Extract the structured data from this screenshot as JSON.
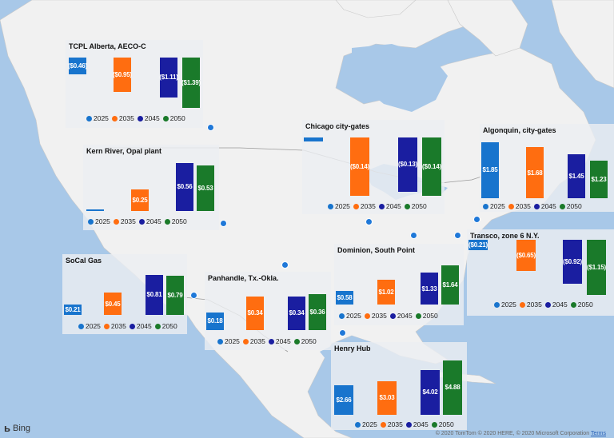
{
  "colors": {
    "2025": "#1874cd",
    "2035": "#ff6d10",
    "2045": "#1a1ea0",
    "2050": "#1a7a2a",
    "water": "#a8c8e8",
    "land": "#f1f1f1"
  },
  "years": [
    "2025",
    "2035",
    "2045",
    "2050"
  ],
  "panels": [
    {
      "title": "TCPL Alberta, AECO-C",
      "labels": [
        "($0.46)",
        "($0.95)",
        "($1.11)",
        "($1.39)"
      ],
      "values": [
        -0.46,
        -0.95,
        -1.11,
        -1.39
      ]
    },
    {
      "title": "Chicago city-gates",
      "labels": [
        "",
        "($0.14)",
        "($0.13)",
        "($0.14)"
      ],
      "values": [
        -0.01,
        -0.14,
        -0.13,
        -0.14
      ]
    },
    {
      "title": "Algonquin, city-gates",
      "labels": [
        "$1.85",
        "$1.68",
        "$1.45",
        "$1.23"
      ],
      "values": [
        1.85,
        1.68,
        1.45,
        1.23
      ]
    },
    {
      "title": "Kern River, Opal plant",
      "labels": [
        "",
        "$0.25",
        "$0.56",
        "$0.53"
      ],
      "values": [
        0.005,
        0.25,
        0.56,
        0.53
      ]
    },
    {
      "title": "SoCal Gas",
      "labels": [
        "$0.21",
        "$0.45",
        "$0.81",
        "$0.79"
      ],
      "values": [
        0.21,
        0.45,
        0.81,
        0.79
      ]
    },
    {
      "title": "Panhandle, Tx.-Okla.",
      "labels": [
        "$0.18",
        "$0.34",
        "$0.34",
        "$0.36"
      ],
      "values": [
        0.18,
        0.34,
        0.34,
        0.36
      ]
    },
    {
      "title": "Dominion, South Point",
      "labels": [
        "$0.58",
        "$1.02",
        "$1.33",
        "$1.64"
      ],
      "values": [
        0.58,
        1.02,
        1.33,
        1.64
      ]
    },
    {
      "title": "Transco, zone 6 N.Y.",
      "labels": [
        "($0.21)",
        "($0.65)",
        "($0.92)",
        "($1.15)"
      ],
      "values": [
        -0.21,
        -0.65,
        -0.92,
        -1.15
      ]
    },
    {
      "title": "Henry Hub",
      "labels": [
        "$2.66",
        "$3.03",
        "$4.02",
        "$4.88"
      ],
      "values": [
        2.66,
        3.03,
        4.02,
        4.88
      ]
    }
  ],
  "branding": {
    "logo": "Bing",
    "attribution": "© 2020 TomTom © 2020 HERE, © 2020 Microsoft Corporation",
    "terms": "Terms"
  }
}
